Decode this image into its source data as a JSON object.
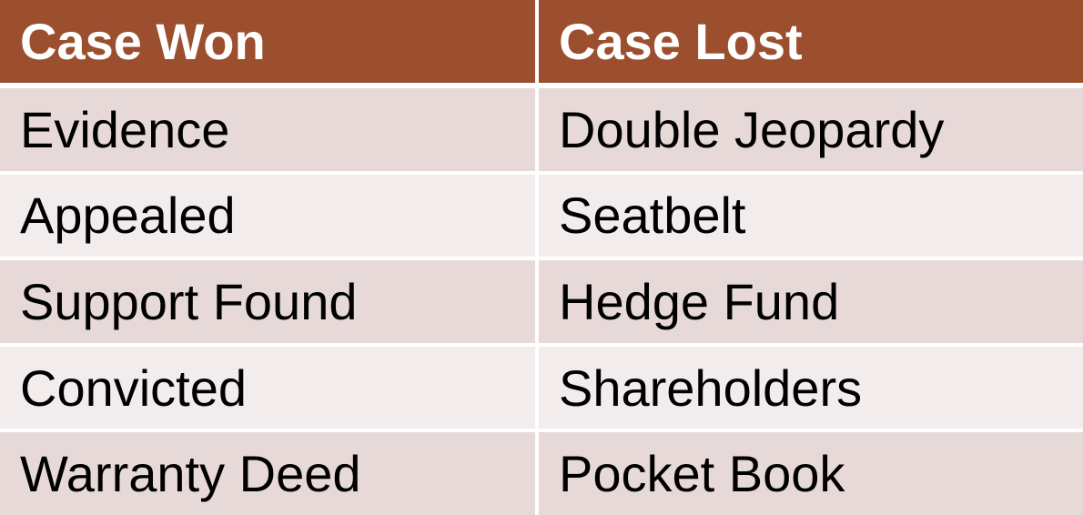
{
  "colors": {
    "header_bg": "#9c4f2f",
    "row_odd_bg": "#e8d9d9",
    "row_even_bg": "#f3ecec"
  },
  "table": {
    "headers": [
      "Case Won",
      "Case Lost"
    ],
    "rows": [
      [
        "Evidence",
        "Double Jeopardy"
      ],
      [
        "Appealed",
        "Seatbelt"
      ],
      [
        "Support Found",
        "Hedge Fund"
      ],
      [
        "Convicted",
        "Shareholders"
      ],
      [
        "Warranty Deed",
        "Pocket Book"
      ]
    ]
  }
}
